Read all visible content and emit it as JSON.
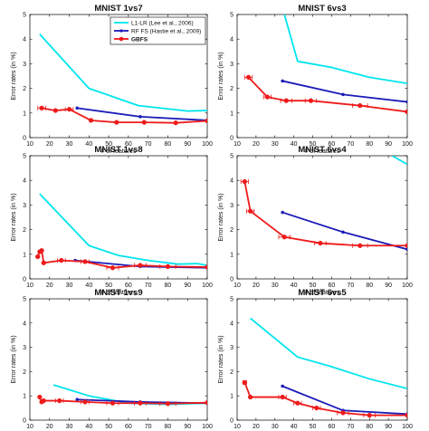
{
  "chart_data": [
    {
      "type": "line",
      "title": "MNIST 1vs7",
      "xlabel": "# of features",
      "ylabel": "Error rates (in %)",
      "xlim": [
        10,
        100
      ],
      "ylim": [
        0,
        5
      ],
      "xticks": [
        10,
        20,
        30,
        40,
        50,
        60,
        70,
        80,
        90,
        100
      ],
      "yticks": [
        0,
        1,
        2,
        3,
        4,
        5
      ],
      "grid": false,
      "legend": "top-right",
      "series": [
        {
          "name": "L1-LR (Lee et al., 2006)",
          "color": "#00e5ee",
          "marker": "none",
          "x": [
            15,
            40,
            65,
            90,
            100
          ],
          "y": [
            4.2,
            2.0,
            1.3,
            1.08,
            1.1
          ]
        },
        {
          "name": "RF FS (Hastie et al., 2009)",
          "color": "#1c1cb8",
          "marker": "dot",
          "x": [
            34,
            66,
            100
          ],
          "y": [
            1.2,
            0.85,
            0.7
          ]
        },
        {
          "name": "GBFS",
          "color": "#ee1a1a",
          "marker": "dot",
          "x": [
            16,
            23,
            30,
            41,
            54,
            68,
            84,
            100
          ],
          "y": [
            1.2,
            1.1,
            1.15,
            0.7,
            0.62,
            0.62,
            0.6,
            0.68
          ],
          "xerr": [
            2,
            0,
            2,
            0,
            0,
            0,
            0,
            0
          ]
        }
      ]
    },
    {
      "type": "line",
      "title": "MNIST 6vs3",
      "xlabel": "# of features",
      "ylabel": "Error rates (in %)",
      "xlim": [
        10,
        100
      ],
      "ylim": [
        0,
        5
      ],
      "xticks": [
        10,
        20,
        30,
        40,
        50,
        60,
        70,
        80,
        90,
        100
      ],
      "yticks": [
        0,
        1,
        2,
        3,
        4,
        5
      ],
      "series": [
        {
          "name": "L1-LR",
          "color": "#00e5ee",
          "marker": "none",
          "x": [
            35,
            42,
            60,
            80,
            100
          ],
          "y": [
            5.0,
            3.1,
            2.85,
            2.45,
            2.2
          ]
        },
        {
          "name": "RF FS",
          "color": "#1c1cb8",
          "marker": "dot",
          "x": [
            34,
            66,
            100
          ],
          "y": [
            2.3,
            1.75,
            1.45
          ]
        },
        {
          "name": "GBFS",
          "color": "#ee1a1a",
          "marker": "dot",
          "x": [
            16,
            26,
            36,
            49,
            75,
            100
          ],
          "y": [
            2.45,
            1.65,
            1.5,
            1.5,
            1.3,
            1.05
          ],
          "xerr": [
            2,
            2,
            3,
            3,
            4,
            0
          ]
        }
      ]
    },
    {
      "type": "line",
      "title": "MNIST 1vs8",
      "xlabel": "# of features",
      "ylabel": "Error rates (in %)",
      "xlim": [
        10,
        100
      ],
      "ylim": [
        0,
        5
      ],
      "xticks": [
        10,
        20,
        30,
        40,
        50,
        60,
        70,
        80,
        90,
        100
      ],
      "yticks": [
        0,
        1,
        2,
        3,
        4,
        5
      ],
      "series": [
        {
          "name": "L1-LR",
          "color": "#00e5ee",
          "marker": "none",
          "x": [
            15,
            40,
            55,
            70,
            85,
            95,
            100
          ],
          "y": [
            3.45,
            1.35,
            0.95,
            0.75,
            0.6,
            0.62,
            0.55
          ]
        },
        {
          "name": "RF FS",
          "color": "#1c1cb8",
          "marker": "dot",
          "x": [
            33,
            66,
            100
          ],
          "y": [
            0.75,
            0.5,
            0.45
          ]
        },
        {
          "name": "GBFS",
          "color": "#ee1a1a",
          "marker": "dot",
          "x": [
            14,
            15,
            16,
            17,
            26,
            38,
            52,
            66,
            80,
            100
          ],
          "y": [
            0.9,
            1.1,
            1.15,
            0.65,
            0.75,
            0.7,
            0.45,
            0.55,
            0.5,
            0.48
          ],
          "xerr": [
            0,
            0,
            0,
            0,
            2,
            2,
            3,
            3,
            4,
            0
          ]
        }
      ]
    },
    {
      "type": "line",
      "title": "MNIST 6vs4",
      "xlabel": "# of features",
      "ylabel": "Error rates (in %)",
      "xlim": [
        10,
        100
      ],
      "ylim": [
        0,
        5
      ],
      "xticks": [
        10,
        20,
        30,
        40,
        50,
        60,
        70,
        80,
        90,
        100
      ],
      "yticks": [
        0,
        1,
        2,
        3,
        4,
        5
      ],
      "series": [
        {
          "name": "L1-LR",
          "color": "#00e5ee",
          "marker": "none",
          "x": [
            92,
            100
          ],
          "y": [
            5.0,
            4.65
          ]
        },
        {
          "name": "RF FS",
          "color": "#1c1cb8",
          "marker": "dot",
          "x": [
            34,
            66,
            100
          ],
          "y": [
            2.7,
            1.9,
            1.2
          ]
        },
        {
          "name": "GBFS",
          "color": "#ee1a1a",
          "marker": "dot",
          "x": [
            14,
            17,
            35,
            54,
            75,
            100
          ],
          "y": [
            3.95,
            2.75,
            1.7,
            1.45,
            1.35,
            1.35
          ],
          "xerr": [
            2,
            2,
            3,
            3,
            4,
            0
          ]
        }
      ]
    },
    {
      "type": "line",
      "title": "MNIST 1vs9",
      "xlabel": "# of features",
      "ylabel": "Error rates (in %)",
      "xlim": [
        10,
        100
      ],
      "ylim": [
        0,
        5
      ],
      "xticks": [
        10,
        20,
        30,
        40,
        50,
        60,
        70,
        80,
        90,
        100
      ],
      "yticks": [
        0,
        1,
        2,
        3,
        4,
        5
      ],
      "series": [
        {
          "name": "L1-LR",
          "color": "#00e5ee",
          "marker": "none",
          "x": [
            22,
            40,
            60,
            80,
            100
          ],
          "y": [
            1.45,
            1.0,
            0.7,
            0.65,
            0.7
          ]
        },
        {
          "name": "RF FS",
          "color": "#1c1cb8",
          "marker": "dot",
          "x": [
            34,
            66,
            100
          ],
          "y": [
            0.85,
            0.75,
            0.7
          ]
        },
        {
          "name": "GBFS",
          "color": "#ee1a1a",
          "marker": "dot",
          "x": [
            15,
            16,
            17,
            25,
            38,
            52,
            66,
            80,
            100
          ],
          "y": [
            0.95,
            0.75,
            0.8,
            0.8,
            0.75,
            0.7,
            0.7,
            0.68,
            0.72
          ],
          "xerr": [
            0,
            0,
            0,
            2,
            2,
            3,
            3,
            4,
            0
          ]
        }
      ]
    },
    {
      "type": "line",
      "title": "MNIST 6vs5",
      "xlabel": "# of features",
      "ylabel": "Error rates (in %)",
      "xlim": [
        10,
        100
      ],
      "ylim": [
        0,
        5
      ],
      "xticks": [
        10,
        20,
        30,
        40,
        50,
        60,
        70,
        80,
        90,
        100
      ],
      "yticks": [
        0,
        1,
        2,
        3,
        4,
        5
      ],
      "series": [
        {
          "name": "L1-LR",
          "color": "#00e5ee",
          "marker": "none",
          "x": [
            17,
            42,
            60,
            80,
            100
          ],
          "y": [
            4.2,
            2.6,
            2.2,
            1.7,
            1.3
          ]
        },
        {
          "name": "RF FS",
          "color": "#1c1cb8",
          "marker": "dot",
          "x": [
            34,
            66,
            100
          ],
          "y": [
            1.4,
            0.4,
            0.25
          ]
        },
        {
          "name": "GBFS",
          "color": "#ee1a1a",
          "marker": "dot",
          "x": [
            14,
            17,
            34,
            42,
            52,
            66,
            80,
            100
          ],
          "y": [
            1.55,
            0.95,
            0.95,
            0.7,
            0.5,
            0.3,
            0.2,
            0.2
          ],
          "xerr": [
            1,
            0,
            2,
            2,
            2,
            3,
            3,
            0
          ]
        }
      ]
    }
  ],
  "legend": {
    "entries": [
      {
        "label": "L1-LR (Lee et al., 2006)",
        "color": "#00e5ee",
        "marker": "none",
        "bold": false
      },
      {
        "label": "RF FS (Hastie et al., 2009)",
        "color": "#1c1cb8",
        "marker": "dot",
        "bold": false
      },
      {
        "label": "GBFS",
        "color": "#ee1a1a",
        "marker": "dot",
        "bold": true
      }
    ]
  }
}
